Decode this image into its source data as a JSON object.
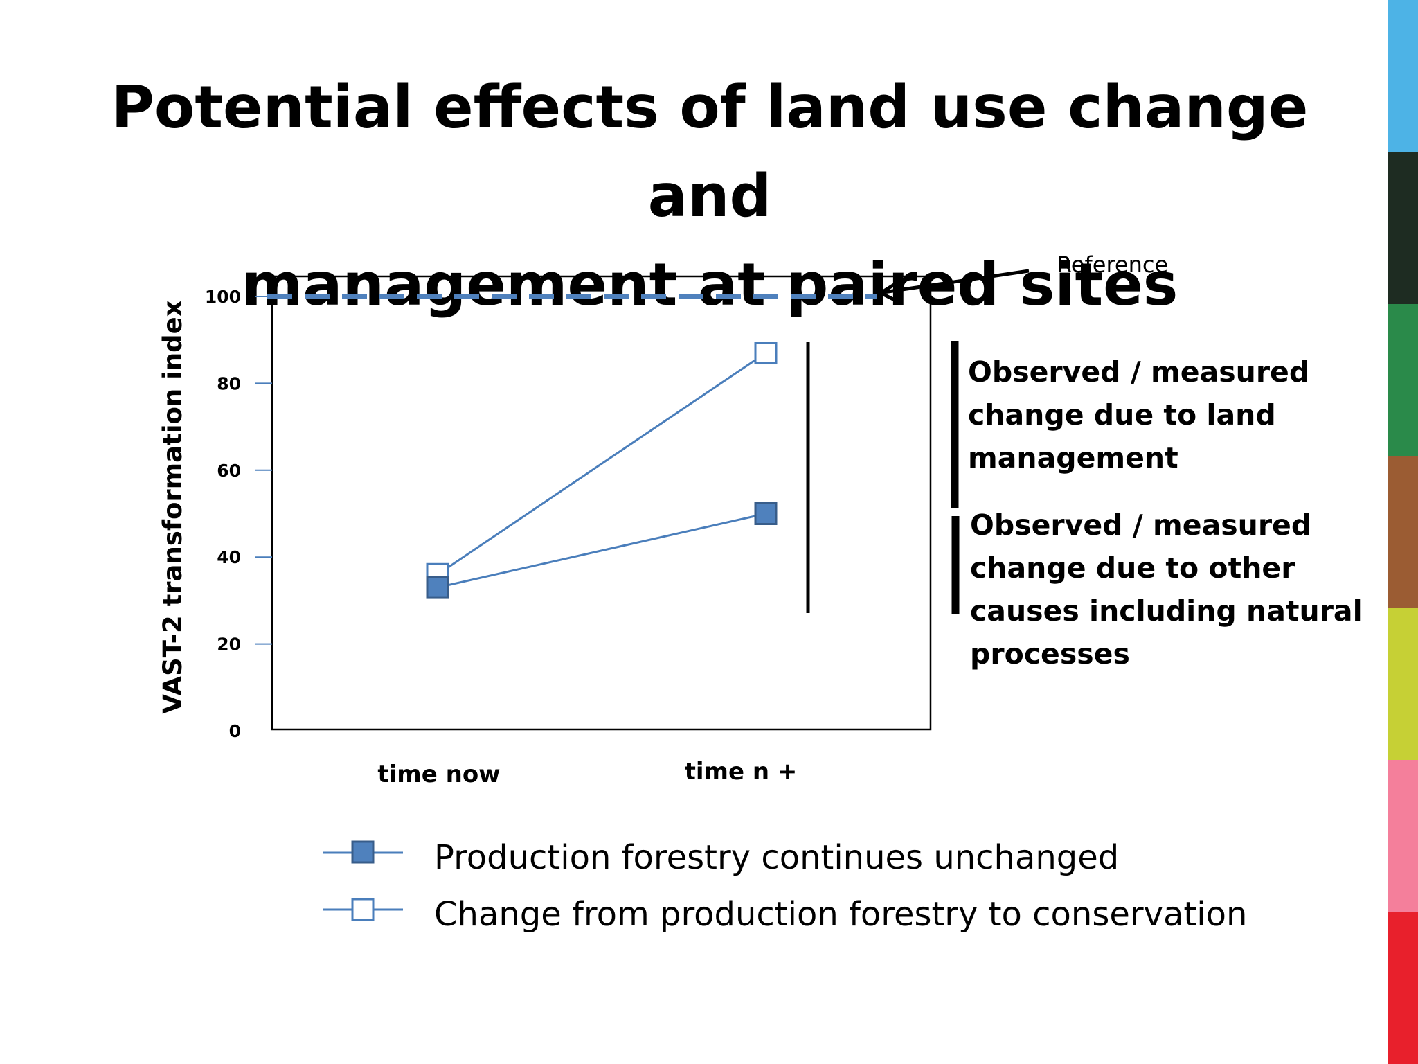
{
  "title": {
    "line1": "Potential effects of land use change and",
    "line2": "management at paired sites"
  },
  "chart_data": {
    "type": "line",
    "categories": [
      "time now",
      "time n +"
    ],
    "series": [
      {
        "name": "Production forestry continues unchanged",
        "values": [
          33,
          50
        ],
        "marker": "filled-square"
      },
      {
        "name": "Change from production forestry to conservation",
        "values": [
          36,
          87
        ],
        "marker": "open-square"
      }
    ],
    "reference": {
      "label": "Reference",
      "value": 100,
      "style": "dashed"
    },
    "ylabel": "VAST-2 transformation index",
    "xlabel": "",
    "ylim": [
      0,
      100
    ],
    "yticks": [
      "0",
      "20",
      "40",
      "60",
      "80",
      "100"
    ],
    "ytick_values": [
      0,
      20,
      40,
      60,
      80,
      100
    ],
    "grid": false,
    "legend_position": "bottom",
    "colors": {
      "series": "#4a7ebb",
      "marker_fill": "#4f81bd",
      "marker_stroke": "#385d8a",
      "reference": "#4f81bd"
    }
  },
  "annotations": {
    "management_change": [
      "Observed / measured",
      "change due to land",
      "management"
    ],
    "other_causes": [
      "Observed / measured",
      "change due to other",
      "causes including natural",
      "processes"
    ]
  },
  "strip_colors": [
    "#4db3e6",
    "#1e2c22",
    "#2a8a4a",
    "#9b5c33",
    "#c6d035",
    "#f47f9b",
    "#e8202c"
  ]
}
